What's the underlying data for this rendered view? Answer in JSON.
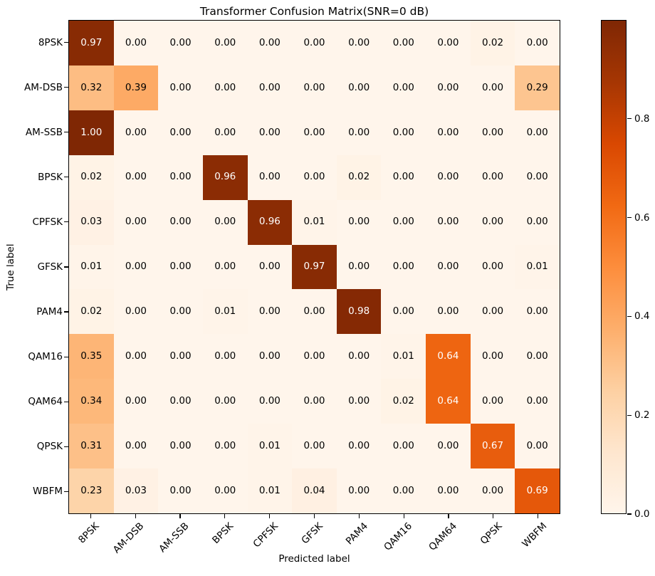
{
  "figure": {
    "title": "Transformer Confusion Matrix(SNR=0 dB)",
    "xlabel": "Predicted label",
    "ylabel": "True label"
  },
  "chart_data": {
    "type": "heatmap",
    "title": "Transformer Confusion Matrix(SNR=0 dB)",
    "xlabel": "Predicted label",
    "ylabel": "True label",
    "x_tick_labels": [
      "8PSK",
      "AM-DSB",
      "AM-SSB",
      "BPSK",
      "CPFSK",
      "GFSK",
      "PAM4",
      "QAM16",
      "QAM64",
      "QPSK",
      "WBFM"
    ],
    "y_tick_labels": [
      "8PSK",
      "AM-DSB",
      "AM-SSB",
      "BPSK",
      "CPFSK",
      "GFSK",
      "PAM4",
      "QAM16",
      "QAM64",
      "QPSK",
      "WBFM"
    ],
    "matrix": [
      [
        0.97,
        0.0,
        0.0,
        0.0,
        0.0,
        0.0,
        0.0,
        0.0,
        0.0,
        0.02,
        0.0
      ],
      [
        0.32,
        0.39,
        0.0,
        0.0,
        0.0,
        0.0,
        0.0,
        0.0,
        0.0,
        0.0,
        0.29
      ],
      [
        1.0,
        0.0,
        0.0,
        0.0,
        0.0,
        0.0,
        0.0,
        0.0,
        0.0,
        0.0,
        0.0
      ],
      [
        0.02,
        0.0,
        0.0,
        0.96,
        0.0,
        0.0,
        0.02,
        0.0,
        0.0,
        0.0,
        0.0
      ],
      [
        0.03,
        0.0,
        0.0,
        0.0,
        0.96,
        0.01,
        0.0,
        0.0,
        0.0,
        0.0,
        0.0
      ],
      [
        0.01,
        0.0,
        0.0,
        0.0,
        0.0,
        0.97,
        0.0,
        0.0,
        0.0,
        0.0,
        0.01
      ],
      [
        0.02,
        0.0,
        0.0,
        0.01,
        0.0,
        0.0,
        0.98,
        0.0,
        0.0,
        0.0,
        0.0
      ],
      [
        0.35,
        0.0,
        0.0,
        0.0,
        0.0,
        0.0,
        0.0,
        0.01,
        0.64,
        0.0,
        0.0
      ],
      [
        0.34,
        0.0,
        0.0,
        0.0,
        0.0,
        0.0,
        0.0,
        0.02,
        0.64,
        0.0,
        0.0
      ],
      [
        0.31,
        0.0,
        0.0,
        0.0,
        0.01,
        0.0,
        0.0,
        0.0,
        0.0,
        0.67,
        0.0
      ],
      [
        0.23,
        0.03,
        0.0,
        0.0,
        0.01,
        0.04,
        0.0,
        0.0,
        0.0,
        0.0,
        0.69
      ]
    ],
    "value_format": "two_decimals",
    "colormap": "Oranges",
    "vmin": 0.0,
    "vmax": 1.0,
    "annotation_text_threshold": 0.5,
    "colorbar": {
      "tick_values": [
        0.0,
        0.2,
        0.4,
        0.6,
        0.8
      ],
      "tick_labels": [
        "0.0",
        "0.2",
        "0.4",
        "0.6",
        "0.8"
      ],
      "position": "right"
    },
    "legend": "none",
    "grid": false
  },
  "colors": {
    "colormap_stops": [
      "#fff5eb",
      "#fee6ce",
      "#fdd0a2",
      "#fdae6b",
      "#fd8d3c",
      "#f16913",
      "#d94801",
      "#a63603",
      "#7f2704"
    ],
    "annotation_dark": "#000000",
    "annotation_light": "#ffffff",
    "spine": "#000000",
    "background": "#ffffff"
  }
}
